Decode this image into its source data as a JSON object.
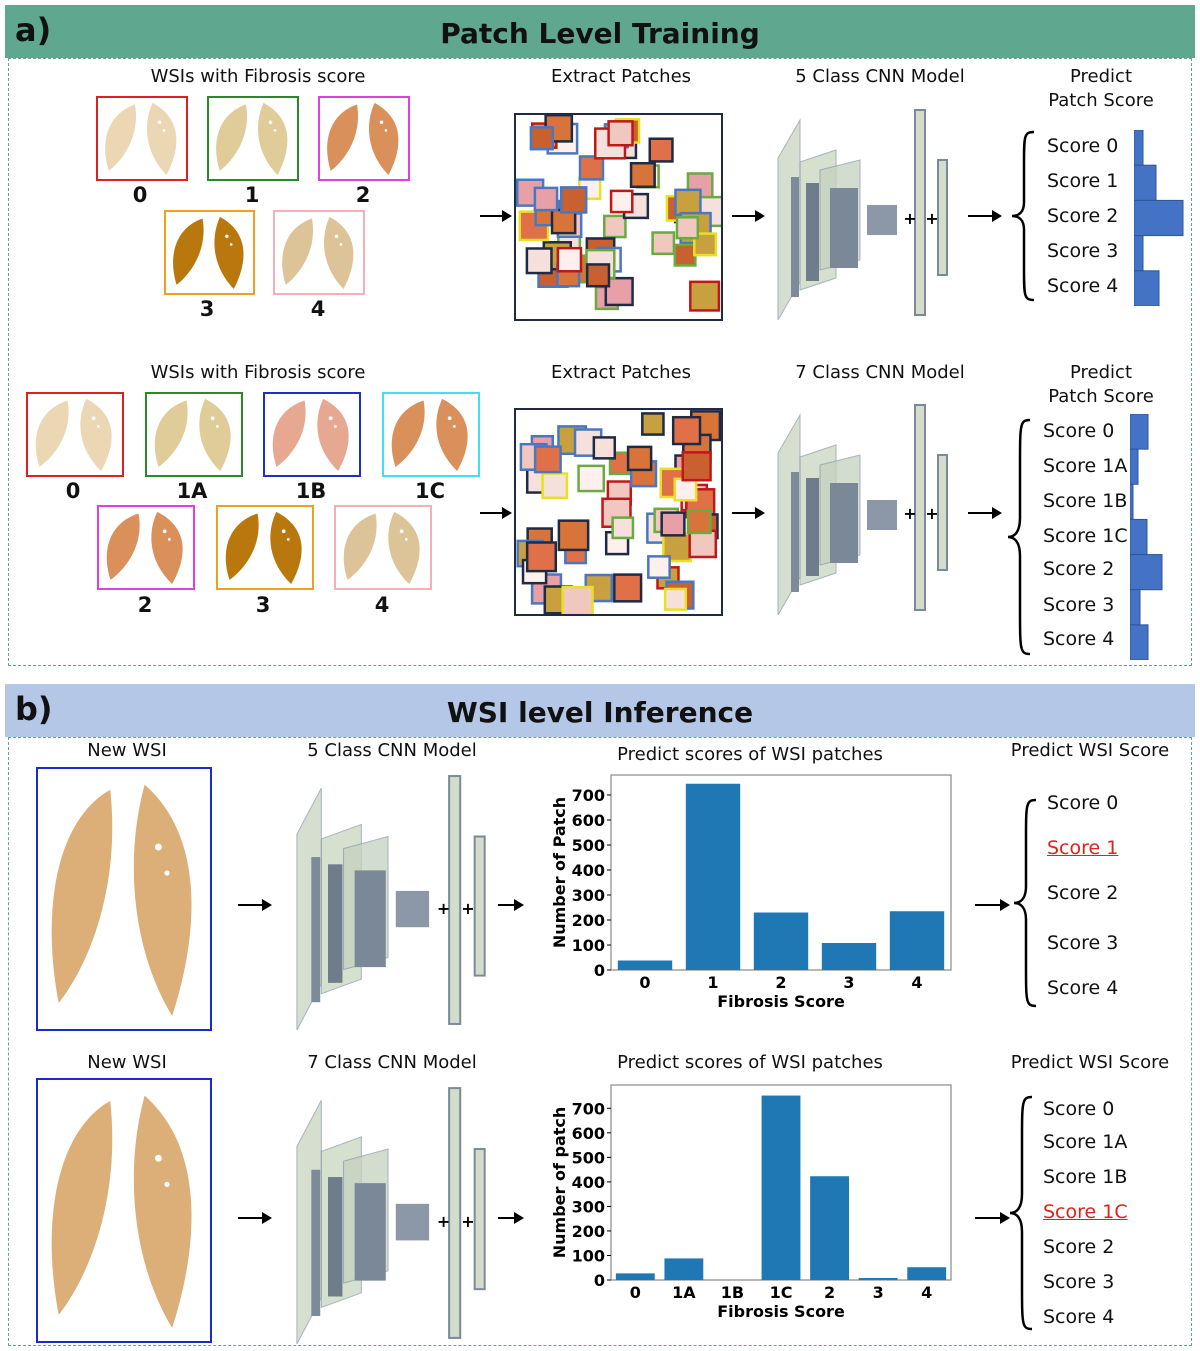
{
  "section_a": {
    "tag": "a)",
    "title": "Patch Level Training",
    "header_color": "#5fa88f",
    "row5": {
      "wsi_label": "WSIs with Fibrosis score",
      "slides": [
        {
          "label": "0",
          "border": "#e02020",
          "tissue": "#ecd7b4"
        },
        {
          "label": "1",
          "border": "#2a8a2a",
          "tissue": "#e0cc98"
        },
        {
          "label": "2",
          "border": "#e040e0",
          "tissue": "#d9905a"
        },
        {
          "label": "3",
          "border": "#f0a020",
          "tissue": "#b8780e"
        },
        {
          "label": "4",
          "border": "#f4b0b8",
          "tissue": "#dcc498"
        }
      ],
      "extract_label": "Extract Patches",
      "model_label": "5 Class CNN Model",
      "predict_label_1": "Predict",
      "predict_label_2": "Patch Score",
      "scores": [
        "Score 0",
        "Score 1",
        "Score 2",
        "Score 3",
        "Score 4"
      ],
      "histogram": [
        9,
        22,
        49,
        9,
        25
      ]
    },
    "row7": {
      "wsi_label": "WSIs with Fibrosis score",
      "slides": [
        {
          "label": "0",
          "border": "#e02020",
          "tissue": "#ecd7b4"
        },
        {
          "label": "1A",
          "border": "#2a8a2a",
          "tissue": "#e0cc98"
        },
        {
          "label": "1B",
          "border": "#2030c0",
          "tissue": "#e6a890"
        },
        {
          "label": "1C",
          "border": "#40e0f0",
          "tissue": "#d9905a"
        },
        {
          "label": "2",
          "border": "#e040e0",
          "tissue": "#d9905a"
        },
        {
          "label": "3",
          "border": "#f0a020",
          "tissue": "#b8780e"
        },
        {
          "label": "4",
          "border": "#f4b0b8",
          "tissue": "#dcc498"
        }
      ],
      "extract_label": "Extract Patches",
      "model_label": "7 Class CNN Model",
      "predict_label_1": "Predict",
      "predict_label_2": "Patch Score",
      "scores": [
        "Score 0",
        "Score 1A",
        "Score 1B",
        "Score 1C",
        "Score 2",
        "Score 3",
        "Score 4"
      ],
      "histogram": [
        18,
        8,
        3,
        17,
        32,
        10,
        18
      ]
    },
    "histogram_color": "#4472c4"
  },
  "section_b": {
    "tag": "b)",
    "title": "WSI level Inference",
    "header_color": "#b4c7e7",
    "row5": {
      "wsi_label": "New WSI",
      "model_label": "5 Class CNN Model",
      "chart_title": "Predict scores of WSI patches",
      "predict_label": "Predict  WSI Score",
      "scores": [
        "Score 0",
        "Score 1",
        "Score 2",
        "Score 3",
        "Score 4"
      ],
      "selected_index": 1
    },
    "row7": {
      "wsi_label": "New WSI",
      "model_label": "7 Class CNN Model",
      "chart_title": "Predict scores of WSI patches",
      "predict_label": "Predict  WSI Score",
      "scores": [
        "Score 0",
        "Score 1A",
        "Score 1B",
        "Score 1C",
        "Score 2",
        "Score 3",
        "Score 4"
      ],
      "selected_index": 3
    },
    "slide_border": "#1a2ad0",
    "tissue_color": "#dcae78"
  },
  "chart_data": [
    {
      "type": "bar",
      "title": "",
      "xlabel": "Fibrosis Score",
      "ylabel": "Number of Patch",
      "categories": [
        "0",
        "1",
        "2",
        "3",
        "4"
      ],
      "values": [
        38,
        745,
        230,
        108,
        235
      ],
      "ylim": [
        0,
        780
      ],
      "yticks": [
        0,
        100,
        200,
        300,
        400,
        500,
        600,
        700
      ],
      "color": "#1f77b4",
      "grid": false
    },
    {
      "type": "bar",
      "title": "",
      "xlabel": "Fibrosis Score",
      "ylabel": "Number of patch",
      "categories": [
        "0",
        "1A",
        "1B",
        "1C",
        "2",
        "3",
        "4"
      ],
      "values": [
        27,
        88,
        0,
        752,
        423,
        8,
        52
      ],
      "ylim": [
        0,
        795
      ],
      "yticks": [
        0,
        100,
        200,
        300,
        400,
        500,
        600,
        700
      ],
      "color": "#1f77b4",
      "grid": false
    }
  ]
}
